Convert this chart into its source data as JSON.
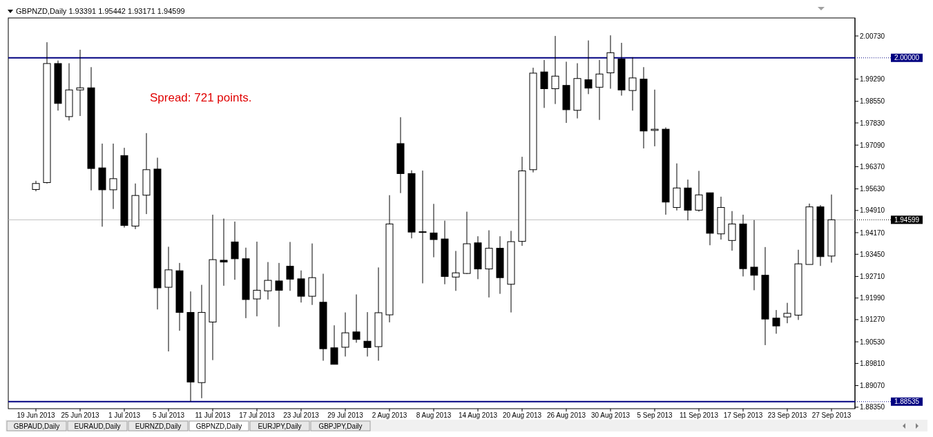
{
  "chart_data": {
    "type": "candlestick",
    "title": "GBPNZD,Daily  1.93391 1.95442 1.93171 1.94599",
    "categories": [
      "19 Jun 2013",
      null,
      null,
      null,
      "25 Jun 2013",
      null,
      null,
      null,
      "1 Jul 2013",
      null,
      null,
      null,
      "5 Jul 2013",
      null,
      null,
      null,
      "11 Jul 2013",
      null,
      null,
      null,
      "17 Jul 2013",
      null,
      null,
      null,
      "23 Jul 2013",
      null,
      null,
      null,
      "29 Jul 2013",
      null,
      null,
      null,
      "2 Aug 2013",
      null,
      null,
      null,
      "8 Aug 2013",
      null,
      null,
      null,
      "14 Aug 2013",
      null,
      null,
      null,
      "20 Aug 2013",
      null,
      null,
      null,
      "26 Aug 2013",
      null,
      null,
      null,
      "30 Aug 2013",
      null,
      null,
      null,
      "5 Sep 2013",
      null,
      null,
      null,
      "11 Sep 2013",
      null,
      null,
      null,
      "17 Sep 2013",
      null,
      null,
      null,
      "23 Sep 2013",
      null,
      null,
      null,
      "27 Sep 2013"
    ],
    "ohlc": [
      [
        1.9561,
        1.959,
        1.9555,
        1.9581
      ],
      [
        1.9584,
        2.0052,
        1.9581,
        1.9981
      ],
      [
        1.9981,
        1.9991,
        1.9824,
        1.9848
      ],
      [
        1.9804,
        1.9982,
        1.9791,
        1.9893
      ],
      [
        1.9893,
        2.0027,
        1.9806,
        1.99
      ],
      [
        1.99,
        1.9969,
        1.9558,
        1.9631
      ],
      [
        1.9633,
        1.9714,
        1.9437,
        1.956
      ],
      [
        1.956,
        1.9714,
        1.9496,
        1.9597
      ],
      [
        1.9674,
        1.97,
        1.9434,
        1.9441
      ],
      [
        1.9439,
        1.9581,
        1.9429,
        1.9541
      ],
      [
        1.9542,
        1.9749,
        1.9479,
        1.9627
      ],
      [
        1.9629,
        1.9667,
        1.9161,
        1.9233
      ],
      [
        1.9235,
        1.937,
        1.9021,
        1.9293
      ],
      [
        1.929,
        1.9316,
        1.909,
        1.9151
      ],
      [
        1.9151,
        1.9221,
        1.8854,
        1.8919
      ],
      [
        1.8917,
        1.9243,
        1.8865,
        1.9151
      ],
      [
        1.9119,
        1.9477,
        1.8992,
        1.9327
      ],
      [
        1.9325,
        1.9464,
        1.924,
        1.9319
      ],
      [
        1.9386,
        1.9454,
        1.926,
        1.933
      ],
      [
        1.933,
        1.9367,
        1.9132,
        1.9194
      ],
      [
        1.9196,
        1.9387,
        1.9138,
        1.9225
      ],
      [
        1.9223,
        1.9319,
        1.9194,
        1.9258
      ],
      [
        1.9256,
        1.9316,
        1.9103,
        1.9225
      ],
      [
        1.9305,
        1.9386,
        1.9223,
        1.9262
      ],
      [
        1.9263,
        1.9291,
        1.9184,
        1.9205
      ],
      [
        1.9205,
        1.9381,
        1.9176,
        1.9267
      ],
      [
        1.9185,
        1.928,
        1.899,
        1.903
      ],
      [
        1.9033,
        1.9108,
        1.8978,
        1.8978
      ],
      [
        1.9035,
        1.9151,
        1.9004,
        1.9083
      ],
      [
        1.9086,
        1.9211,
        1.905,
        1.9061
      ],
      [
        1.9055,
        1.9152,
        1.9004,
        1.9034
      ],
      [
        1.9037,
        1.9301,
        1.899,
        1.915
      ],
      [
        1.9143,
        1.9542,
        1.9118,
        1.9446
      ],
      [
        1.9714,
        1.9802,
        1.9549,
        1.9614
      ],
      [
        1.9614,
        1.9625,
        1.9398,
        1.9419
      ],
      [
        1.942,
        1.9624,
        1.9248,
        1.9419
      ],
      [
        1.9416,
        1.9513,
        1.9335,
        1.9394
      ],
      [
        1.9396,
        1.9457,
        1.9245,
        1.9271
      ],
      [
        1.9269,
        1.9356,
        1.9223,
        1.9283
      ],
      [
        1.9281,
        1.9487,
        1.9279,
        1.938
      ],
      [
        1.9383,
        1.9405,
        1.9262,
        1.9296
      ],
      [
        1.9296,
        1.9425,
        1.9201,
        1.9365
      ],
      [
        1.9365,
        1.9405,
        1.9213,
        1.9267
      ],
      [
        1.9245,
        1.9423,
        1.9151,
        1.9387
      ],
      [
        1.9388,
        1.967,
        1.9373,
        1.9623
      ],
      [
        1.9627,
        1.9967,
        1.9618,
        1.9949
      ],
      [
        1.9953,
        1.9993,
        1.9833,
        1.9897
      ],
      [
        1.9897,
        2.0073,
        1.9846,
        1.9939
      ],
      [
        1.9908,
        1.9987,
        1.9783,
        1.9827
      ],
      [
        1.9825,
        1.9982,
        1.9798,
        1.9931
      ],
      [
        1.9927,
        2.0058,
        1.9879,
        1.9899
      ],
      [
        1.9902,
        1.9993,
        1.9793,
        1.9946
      ],
      [
        1.995,
        2.0075,
        1.9897,
        2.0017
      ],
      [
        1.9996,
        2.005,
        1.9874,
        1.9893
      ],
      [
        1.9891,
        2.0002,
        1.9824,
        1.9933
      ],
      [
        1.9929,
        1.9969,
        1.9698,
        1.9756
      ],
      [
        1.9758,
        1.9894,
        1.9705,
        1.9762
      ],
      [
        1.9762,
        1.9768,
        1.9477,
        1.9519
      ],
      [
        1.9501,
        1.9648,
        1.9491,
        1.9566
      ],
      [
        1.9566,
        1.9594,
        1.9458,
        1.9492
      ],
      [
        1.9492,
        1.9623,
        1.9487,
        1.9543
      ],
      [
        1.955,
        1.955,
        1.9375,
        1.9415
      ],
      [
        1.9413,
        1.9537,
        1.9394,
        1.9501
      ],
      [
        1.9391,
        1.9489,
        1.9357,
        1.9446
      ],
      [
        1.9446,
        1.9477,
        1.9271,
        1.9297
      ],
      [
        1.9302,
        1.9459,
        1.9225,
        1.9275
      ],
      [
        1.9275,
        1.9369,
        1.9042,
        1.9129
      ],
      [
        1.9132,
        1.9159,
        1.908,
        1.9106
      ],
      [
        1.9136,
        1.9183,
        1.9115,
        1.9148
      ],
      [
        1.9142,
        1.936,
        1.9126,
        1.9313
      ],
      [
        1.9311,
        1.9514,
        1.9311,
        1.9503
      ],
      [
        1.9503,
        1.9509,
        1.9306,
        1.9337
      ],
      [
        1.93391,
        1.95442,
        1.93171,
        1.94599
      ]
    ],
    "ylim": [
      1.883,
      2.0133
    ],
    "yticks": [
      {
        "value": 2.0073,
        "label": "2.00730"
      },
      {
        "value": 1.9929,
        "label": "1.99290"
      },
      {
        "value": 1.9855,
        "label": "1.98550"
      },
      {
        "value": 1.9783,
        "label": "1.97830"
      },
      {
        "value": 1.9709,
        "label": "1.97090"
      },
      {
        "value": 1.9637,
        "label": "1.96370"
      },
      {
        "value": 1.9563,
        "label": "1.95630"
      },
      {
        "value": 1.9491,
        "label": "1.94910"
      },
      {
        "value": 1.9417,
        "label": "1.94170"
      },
      {
        "value": 1.9345,
        "label": "1.93450"
      },
      {
        "value": 1.9271,
        "label": "1.92710"
      },
      {
        "value": 1.9199,
        "label": "1.91990"
      },
      {
        "value": 1.9127,
        "label": "1.91270"
      },
      {
        "value": 1.9053,
        "label": "1.90530"
      },
      {
        "value": 1.8981,
        "label": "1.89810"
      },
      {
        "value": 1.8907,
        "label": "1.89070"
      },
      {
        "value": 1.8835,
        "label": "1.88350"
      }
    ],
    "ref_lines": [
      {
        "axis": "y",
        "value": 2.0,
        "label": "2.00000",
        "color": "#000080"
      },
      {
        "axis": "y",
        "value": 1.88535,
        "label": "1.88535",
        "color": "#000080"
      },
      {
        "axis": "y",
        "value": 1.94599,
        "label": "1.94599",
        "color": "#c0c0c0"
      }
    ],
    "annotations": [
      "Spread: 721 points.",
      "GBPAUD,Daily",
      "EURAUD,Daily",
      "EURNZD,Daily",
      "GBPNZD,Daily",
      "EURJPY,Daily",
      "GBPJPY,Daily"
    ],
    "grid": false
  }
}
